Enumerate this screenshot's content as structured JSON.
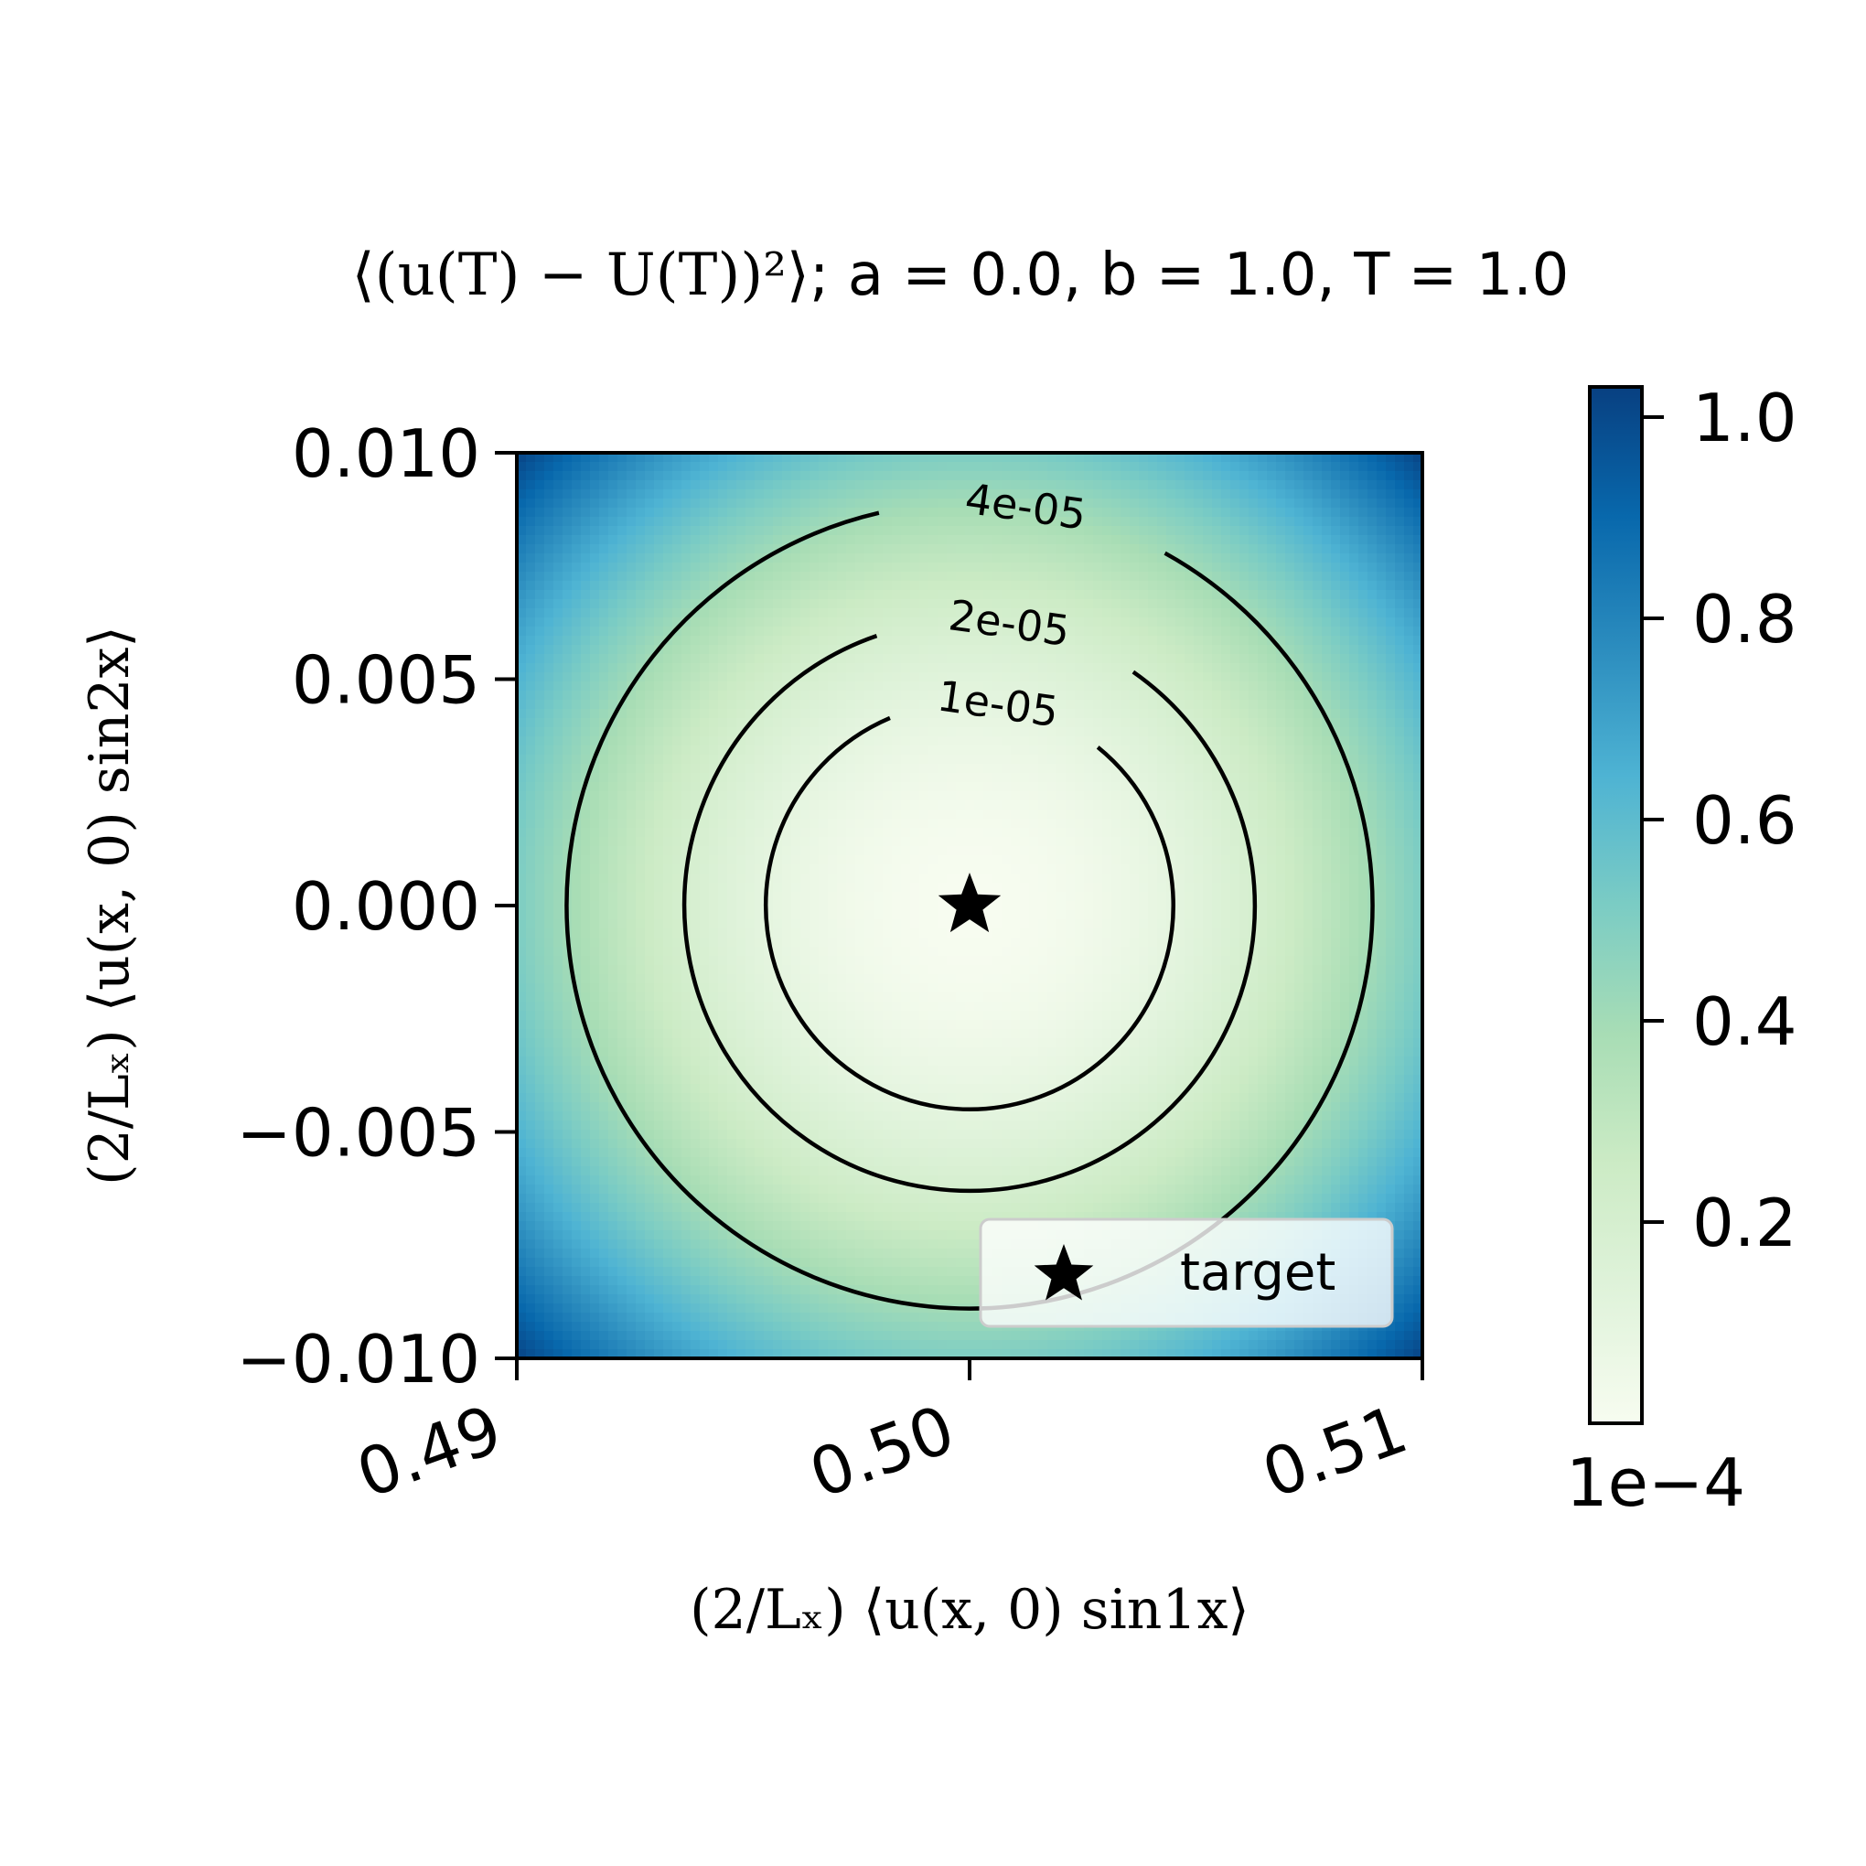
{
  "chart_data": {
    "type": "heatmap",
    "title_math": "⟨(u(T) − U(T))²⟩",
    "title_params": "; a = 0.0, b = 1.0, T = 1.0",
    "xlabel": "(2/Lₓ) ⟨u(x, 0) sin1x⟩",
    "ylabel": "(2/Lₓ) ⟨u(x, 0) sin2x⟩",
    "xlim": [
      0.49,
      0.51
    ],
    "ylim": [
      -0.01,
      0.01
    ],
    "x_ticks": [
      0.49,
      0.5,
      0.51
    ],
    "x_tick_labels": [
      "0.49",
      "0.50",
      "0.51"
    ],
    "y_ticks": [
      0.01,
      0.005,
      0.0,
      -0.005,
      -0.01
    ],
    "y_tick_labels": [
      "0.010",
      "0.005",
      "0.000",
      "−0.005",
      "−0.010"
    ],
    "colorbar": {
      "colormap": "GnBu",
      "range": [
        0.0,
        1.03
      ],
      "ticks": [
        0.2,
        0.4,
        0.6,
        0.8,
        1.0
      ],
      "tick_labels": [
        "0.2",
        "0.4",
        "0.6",
        "0.8",
        "1.0"
      ],
      "scale_label": "1e−4",
      "colors": [
        "#f7fcf0",
        "#e0f3db",
        "#ccebc5",
        "#a8ddb5",
        "#7bccc4",
        "#4eb3d3",
        "#2b8cbe",
        "#0868ac",
        "#084081"
      ]
    },
    "field": {
      "center": [
        0.5,
        0.0
      ],
      "scale_factor": 0.0001,
      "value_at_center": 0.0,
      "value_at_corners": 1.02
    },
    "contours": [
      {
        "level": 1e-05,
        "label": "1e-05",
        "radius": 0.0045
      },
      {
        "level": 2e-05,
        "label": "2e-05",
        "radius": 0.0063
      },
      {
        "level": 4e-05,
        "label": "4e-05",
        "radius": 0.0089
      }
    ],
    "target": {
      "x": 0.5,
      "y": 0.0,
      "marker": "star-icon",
      "label": "target"
    },
    "legend": {
      "placement": "lower-right",
      "entries": [
        "target"
      ]
    }
  }
}
